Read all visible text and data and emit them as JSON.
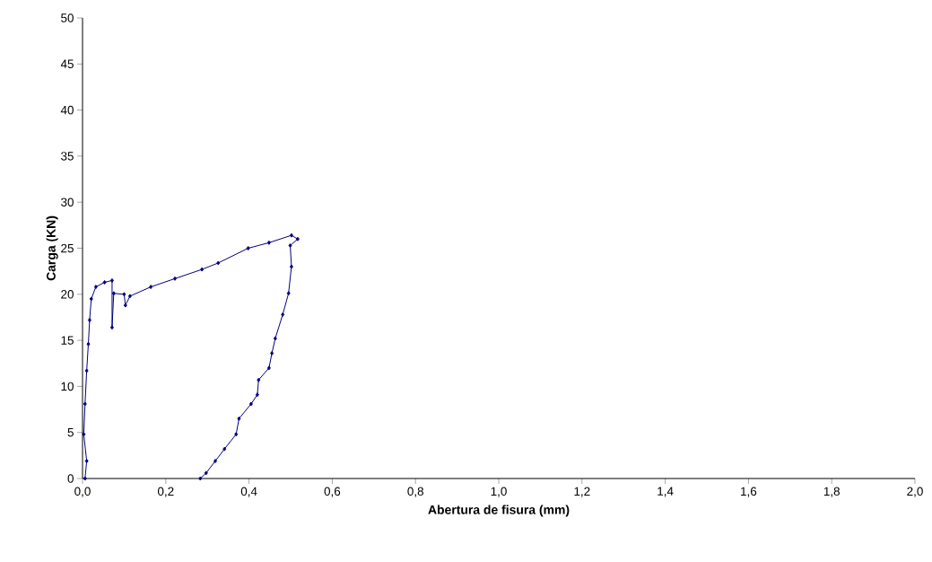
{
  "chart_data": {
    "type": "line",
    "xlabel": "Abertura de fisura (mm)",
    "ylabel": "Carga (KN)",
    "series": [
      {
        "color": "#000080",
        "x": [
          0.006,
          0.01,
          0.003,
          0.006,
          0.01,
          0.014,
          0.017,
          0.021,
          0.032,
          0.053,
          0.071,
          0.071,
          0.075,
          0.1,
          0.103,
          0.114,
          0.164,
          0.222,
          0.287,
          0.326,
          0.398,
          0.448,
          0.502,
          0.517,
          0.499,
          0.502,
          0.495,
          0.481,
          0.463,
          0.455,
          0.448,
          0.423,
          0.42,
          0.405,
          0.376,
          0.369,
          0.341,
          0.319,
          0.297,
          0.283
        ],
        "values": [
          0,
          1.9,
          4.8,
          8.1,
          11.7,
          14.6,
          17.2,
          19.5,
          20.8,
          21.3,
          21.5,
          16.4,
          20.1,
          20.0,
          18.8,
          19.8,
          20.8,
          21.7,
          22.7,
          23.4,
          25.0,
          25.6,
          26.4,
          26.0,
          25.3,
          23.0,
          20.1,
          17.8,
          15.2,
          13.6,
          12.0,
          10.7,
          9.1,
          8.1,
          6.5,
          4.8,
          3.2,
          1.9,
          0.6,
          0
        ]
      }
    ],
    "xlim": [
      0,
      2
    ],
    "ylim": [
      0,
      50
    ],
    "xticks": [
      {
        "value": 0,
        "label": "0,0"
      },
      {
        "value": 0.2,
        "label": "0,2"
      },
      {
        "value": 0.4,
        "label": "0,4"
      },
      {
        "value": 0.6,
        "label": "0,6"
      },
      {
        "value": 0.8,
        "label": "0,8"
      },
      {
        "value": 1.0,
        "label": "1,0"
      },
      {
        "value": 1.2,
        "label": "1,2"
      },
      {
        "value": 1.4,
        "label": "1,4"
      },
      {
        "value": 1.6,
        "label": "1,6"
      },
      {
        "value": 1.8,
        "label": "1,8"
      },
      {
        "value": 2.0,
        "label": "2,0"
      }
    ],
    "yticks": [
      0,
      5,
      10,
      15,
      20,
      25,
      30,
      35,
      40,
      45,
      50
    ],
    "grid": false,
    "marker": "diamond",
    "line_style": "solid"
  }
}
